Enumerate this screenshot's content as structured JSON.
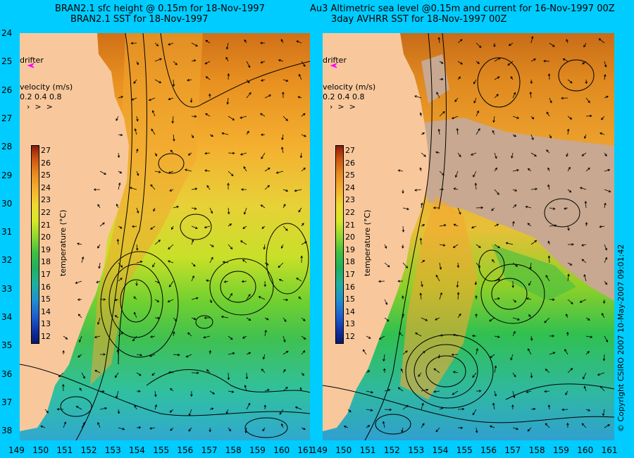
{
  "left_panel": {
    "title_line1": "BRAN2.1 sfc height @ 0.15m for 18-Nov-1997",
    "title_line2": "BRAN2.1 SST for 18-Nov-1997",
    "drifter_label": "drifter",
    "velocity_label": "velocity (m/s)",
    "velocity_scale": "0.2 0.4 0.8",
    "colorbar_title": "temperature (°C)"
  },
  "right_panel": {
    "title_line1": "Au3 Altimetric sea level  @0.15m and current for 16-Nov-1997 00Z",
    "title_line2": "3day AVHRR SST for 18-Nov-1997 00Z",
    "drifter_label": "drifter",
    "velocity_label": "velocity (m/s)",
    "velocity_scale": "0.2 0.4 0.8",
    "colorbar_title": "temperature (°C)"
  },
  "y_axis": {
    "ticks": [
      "24",
      "25",
      "26",
      "27",
      "28",
      "29",
      "30",
      "31",
      "32",
      "33",
      "34",
      "35",
      "36",
      "37",
      "38"
    ]
  },
  "x_axis": {
    "ticks": [
      "149",
      "150",
      "151",
      "152",
      "153",
      "154",
      "155",
      "156",
      "157",
      "158",
      "159",
      "160",
      "161"
    ]
  },
  "colorbar": {
    "ticks": [
      "27",
      "26",
      "25",
      "24",
      "23",
      "22",
      "21",
      "20",
      "19",
      "18",
      "17",
      "16",
      "15",
      "14",
      "13",
      "12"
    ]
  },
  "copyright": "© Copyright CSIRO 2007   10-May-2007 09:01:42",
  "colors": {
    "background": "#00ccff",
    "land": "#f8c89c",
    "drifter": "#ff00ff"
  }
}
